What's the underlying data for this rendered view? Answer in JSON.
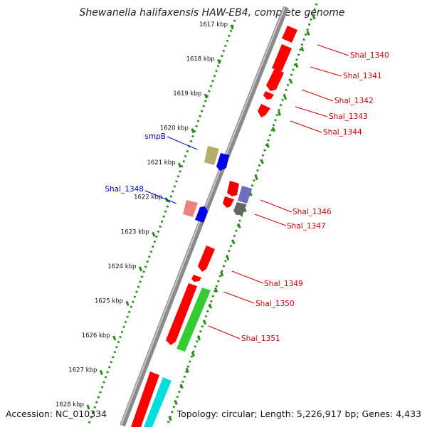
{
  "title": "Shewanella halifaxensis HAW-EB4, complete genome",
  "footer": {
    "accession": "Accession: NC_010334",
    "summary": "Topology: circular; Length: 5,226,917 bp; Genes: 4,433"
  },
  "colors": {
    "backbone": "#8a8a8a",
    "ticks": "#2a8a1e",
    "right_labels": "#cc0000",
    "left_labels": "#0000cc"
  },
  "scale_labels": [
    "1617 kbp",
    "1618 kbp",
    "1619 kbp",
    "1620 kbp",
    "1621 kbp",
    "1622 kbp",
    "1623 kbp",
    "1624 kbp",
    "1625 kbp",
    "1626 kbp",
    "1627 kbp",
    "1628 kbp"
  ],
  "genes": [
    {
      "name": "Shal_1340",
      "side": "right",
      "strand": "minus",
      "color": "#ff0000",
      "start_kbp": 1617.0,
      "end_kbp": 1617.3
    },
    {
      "name": "Shal_1341",
      "side": "right",
      "strand": "minus",
      "color": "#ff0000",
      "start_kbp": 1617.3,
      "end_kbp": 1618.2
    },
    {
      "name": "Shal_1342",
      "side": "right",
      "strand": "minus",
      "color": "#ff0000",
      "start_kbp": 1618.3,
      "end_kbp": 1619.0
    },
    {
      "name": "Shal_1343",
      "side": "right",
      "strand": "minus",
      "color": "#ff0000",
      "start_kbp": 1619.0,
      "end_kbp": 1619.2
    },
    {
      "name": "Shal_1344",
      "side": "right",
      "strand": "minus",
      "color": "#ff0000",
      "start_kbp": 1619.4,
      "end_kbp": 1619.8
    },
    {
      "name": "smpB",
      "side": "left",
      "strand": "plus",
      "color": "#b5ad6e",
      "start_kbp": 1620.6,
      "end_kbp": 1621.1
    },
    {
      "name": "",
      "side": "left",
      "strand": "plus",
      "color": "#0000ee",
      "start_kbp": 1620.6,
      "end_kbp": 1621.1
    },
    {
      "name": "Shal_1346",
      "side": "right",
      "strand": "minus",
      "color": "#ee0000",
      "start_kbp": 1621.7,
      "end_kbp": 1622.2
    },
    {
      "name": "",
      "side": "right",
      "strand": "minus",
      "color": "#ee0000",
      "start_kbp": 1622.2,
      "end_kbp": 1622.5
    },
    {
      "name": "Shal_1347",
      "side": "right",
      "strand": "minus",
      "color": "#6f6fbf",
      "start_kbp": 1621.7,
      "end_kbp": 1622.2
    },
    {
      "name": "",
      "side": "right",
      "strand": "minus",
      "color": "#666666",
      "start_kbp": 1622.2,
      "end_kbp": 1622.6
    },
    {
      "name": "Shal_1348",
      "side": "left",
      "strand": "plus",
      "color": "#ee8080",
      "start_kbp": 1622.1,
      "end_kbp": 1622.6
    },
    {
      "name": "",
      "side": "left",
      "strand": "plus",
      "color": "#0000ee",
      "start_kbp": 1622.1,
      "end_kbp": 1622.6
    },
    {
      "name": "Shal_1349",
      "side": "right",
      "strand": "minus",
      "color": "#ff0000",
      "start_kbp": 1623.5,
      "end_kbp": 1624.3
    },
    {
      "name": "",
      "side": "right",
      "strand": "minus",
      "color": "#ff0000",
      "start_kbp": 1624.4,
      "end_kbp": 1624.6
    },
    {
      "name": "Shal_1350",
      "side": "right",
      "strand": "minus",
      "color": "#ff0000",
      "start_kbp": 1624.6,
      "end_kbp": 1626.4
    },
    {
      "name": "Shal_1351",
      "side": "right",
      "strand": "minus",
      "color": "#33cc33",
      "start_kbp": 1624.7,
      "end_kbp": 1626.7
    },
    {
      "name": "",
      "side": "right",
      "strand": "minus",
      "color": "#ff0000",
      "start_kbp": 1627.3,
      "end_kbp": 1628.6
    },
    {
      "name": "",
      "side": "right",
      "strand": "minus",
      "color": "#00dddd",
      "start_kbp": 1627.6,
      "end_kbp": 1628.6
    }
  ]
}
